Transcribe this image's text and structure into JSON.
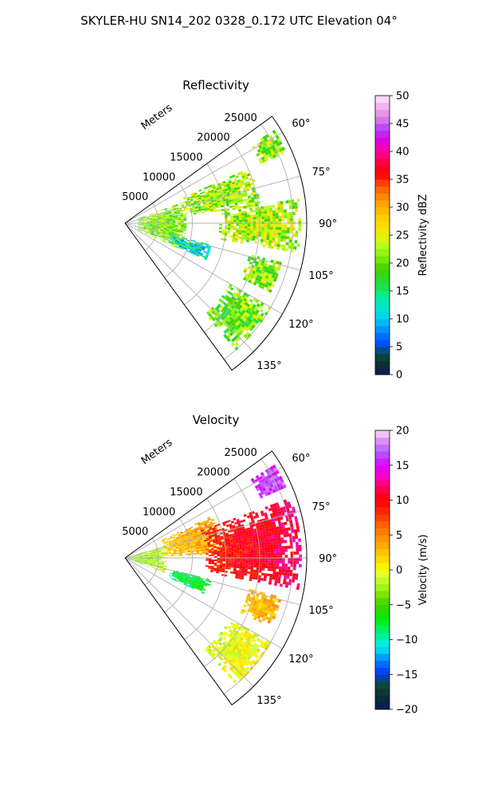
{
  "suptitle": "SKYLER-HU  SN14_202  0328_0.172 UTC Elevation 04°",
  "colors": {
    "grid": "#b0b0b0",
    "background": "#ffffff",
    "frame": "#000000"
  },
  "chart_data": [
    {
      "type": "heatmap",
      "projection": "polar-sector",
      "title": "Reflectivity",
      "radial_label": "Meters",
      "radial_ticks": [
        "5000",
        "10000",
        "15000",
        "20000",
        "25000"
      ],
      "radial_max_m": 27000,
      "angular_ticks": [
        "60°",
        "75°",
        "90°",
        "105°",
        "120°",
        "135°"
      ],
      "theta_range_deg": [
        54,
        144
      ],
      "grid": true,
      "colorbar": {
        "label": "Reflectivity dBZ",
        "ticks": [
          "0",
          "5",
          "10",
          "15",
          "20",
          "25",
          "30",
          "35",
          "40",
          "45",
          "50"
        ],
        "range": [
          0,
          50
        ],
        "stops": [
          [
            0,
            "#0a1a5a"
          ],
          [
            2,
            "#0c3030"
          ],
          [
            4,
            "#0a5040"
          ],
          [
            5,
            "#0040ff"
          ],
          [
            7,
            "#0070ff"
          ],
          [
            9,
            "#00b0ff"
          ],
          [
            11,
            "#00e0e0"
          ],
          [
            14,
            "#00f0a0"
          ],
          [
            16,
            "#20e040"
          ],
          [
            19,
            "#40d000"
          ],
          [
            21,
            "#80f000"
          ],
          [
            23,
            "#b0ff20"
          ],
          [
            25,
            "#f0f000"
          ],
          [
            28,
            "#ffd000"
          ],
          [
            31,
            "#ffa000"
          ],
          [
            34,
            "#ff5000"
          ],
          [
            36,
            "#ff0000"
          ],
          [
            38,
            "#ff0040"
          ],
          [
            40,
            "#ff00a0"
          ],
          [
            42,
            "#e000e0"
          ],
          [
            44,
            "#b040ff"
          ],
          [
            46,
            "#e080e0"
          ],
          [
            48,
            "#f0b0f0"
          ],
          [
            50,
            "#ffe8ff"
          ]
        ]
      },
      "echo_clusters": [
        {
          "r_m": [
            2000,
            9000
          ],
          "theta_deg": [
            70,
            116
          ],
          "value_dbz": 21
        },
        {
          "r_m": [
            9000,
            20000
          ],
          "theta_deg": [
            66,
            82
          ],
          "value_dbz": 22
        },
        {
          "r_m": [
            14000,
            26000
          ],
          "theta_deg": [
            82,
            99
          ],
          "value_dbz": 23
        },
        {
          "r_m": [
            7000,
            13000
          ],
          "theta_deg": [
            104,
            114
          ],
          "value_dbz": 12
        },
        {
          "r_m": [
            19000,
            24000
          ],
          "theta_deg": [
            104,
            115
          ],
          "value_dbz": 21
        },
        {
          "r_m": [
            18000,
            25000
          ],
          "theta_deg": [
            120,
            138
          ],
          "value_dbz": 20
        },
        {
          "r_m": [
            22000,
            26000
          ],
          "theta_deg": [
            58,
            66
          ],
          "value_dbz": 22
        }
      ]
    },
    {
      "type": "heatmap",
      "projection": "polar-sector",
      "title": "Velocity",
      "radial_label": "Meters",
      "radial_ticks": [
        "5000",
        "10000",
        "15000",
        "20000",
        "25000"
      ],
      "radial_max_m": 27000,
      "angular_ticks": [
        "60°",
        "75°",
        "90°",
        "105°",
        "120°",
        "135°"
      ],
      "theta_range_deg": [
        54,
        144
      ],
      "grid": true,
      "colorbar": {
        "label": "Velocity (m/s)",
        "ticks": [
          "−20",
          "−15",
          "−10",
          "−5",
          "0",
          "5",
          "10",
          "15",
          "20"
        ],
        "range": [
          -20,
          20
        ],
        "stops": [
          [
            -20,
            "#0a1a5a"
          ],
          [
            -18,
            "#0c3030"
          ],
          [
            -16,
            "#0a5040"
          ],
          [
            -15,
            "#0030ff"
          ],
          [
            -13,
            "#0080ff"
          ],
          [
            -11,
            "#00f0f0"
          ],
          [
            -9,
            "#00f080"
          ],
          [
            -7,
            "#00f000"
          ],
          [
            -5,
            "#40d000"
          ],
          [
            -3,
            "#90f000"
          ],
          [
            -1,
            "#d0ff40"
          ],
          [
            0,
            "#ffff00"
          ],
          [
            2,
            "#ffd000"
          ],
          [
            4,
            "#ffa000"
          ],
          [
            6,
            "#ff7000"
          ],
          [
            8,
            "#ff3000"
          ],
          [
            10,
            "#ff0000"
          ],
          [
            12,
            "#ff0060"
          ],
          [
            13,
            "#ff00c0"
          ],
          [
            15,
            "#e000ff"
          ],
          [
            17,
            "#b060ff"
          ],
          [
            19,
            "#f0a0f0"
          ],
          [
            20,
            "#ffe0ff"
          ]
        ]
      },
      "echo_clusters": [
        {
          "r_m": [
            0,
            6000
          ],
          "theta_deg": [
            72,
            110
          ],
          "value_ms": 0
        },
        {
          "r_m": [
            6000,
            14000
          ],
          "theta_deg": [
            64,
            88
          ],
          "value_ms": 4
        },
        {
          "r_m": [
            12000,
            26000
          ],
          "theta_deg": [
            70,
            100
          ],
          "value_ms": 9
        },
        {
          "r_m": [
            7000,
            13000
          ],
          "theta_deg": [
            104,
            114
          ],
          "value_ms": -7
        },
        {
          "r_m": [
            19000,
            24000
          ],
          "theta_deg": [
            104,
            115
          ],
          "value_ms": 1
        },
        {
          "r_m": [
            22000,
            26000
          ],
          "theta_deg": [
            58,
            66
          ],
          "value_ms": 14
        },
        {
          "r_m": [
            18000,
            25000
          ],
          "theta_deg": [
            120,
            138
          ],
          "value_ms": -2
        }
      ]
    }
  ]
}
